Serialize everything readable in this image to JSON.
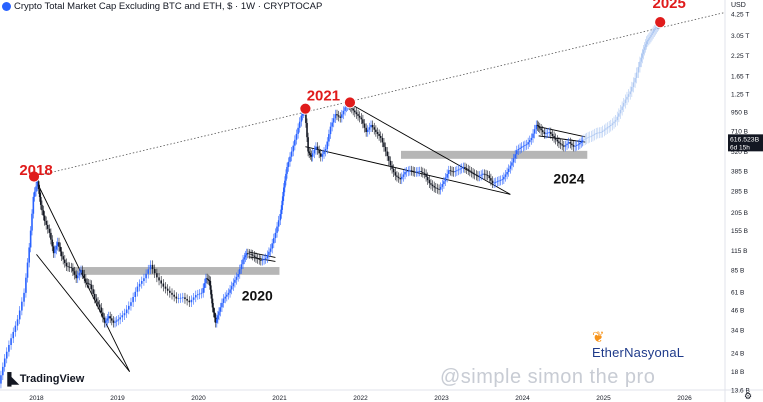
{
  "header": {
    "title": "Crypto Total Market Cap Excluding BTC and ETH, $ · 1W · CRYPTOCAP",
    "currency": "USD"
  },
  "branding": {
    "tradingview": "TradingView",
    "author": "EtherNasyonaL",
    "watermark": "@simple simon the pro"
  },
  "colors": {
    "up": "#26a69a",
    "up_alt": "#2962ff",
    "projection": "#aec8f2",
    "marker": "#e01b1b",
    "zone": "#9e9e9e",
    "line": "#000000"
  },
  "chart_data": {
    "type": "line",
    "title": "Crypto Total Market Cap Excluding BTC and ETH, $ · 1W · CRYPTOCAP",
    "y_scale": "log",
    "ylim": [
      13.6,
      4.8
    ],
    "y_ticks": [
      "4.25 T",
      "3.05 T",
      "2.25 T",
      "1.65 T",
      "1.25 T",
      "950 B",
      "710 B",
      "520 B",
      "385 B",
      "285 B",
      "205 B",
      "155 B",
      "115 B",
      "85 B",
      "61 B",
      "46 B",
      "34 B",
      "24 B",
      "18 B",
      "13.6 B"
    ],
    "y_tick_values": [
      4250,
      3050,
      2250,
      1650,
      1250,
      950,
      710,
      520,
      385,
      285,
      205,
      155,
      115,
      85,
      61,
      46,
      34,
      24,
      18,
      13.6
    ],
    "x_ticks": [
      "2018",
      "2019",
      "2020",
      "2021",
      "2022",
      "2023",
      "2024",
      "2025",
      "2026"
    ],
    "x_tick_values": [
      2018.0,
      2019.0,
      2020.0,
      2021.0,
      2022.0,
      2023.0,
      2024.0,
      2025.0,
      2026.0
    ],
    "xlim": [
      2017.55,
      2026.5
    ],
    "price_label": "616.523B",
    "countdown": "6d 15h",
    "current_value": 616.523,
    "series": [
      {
        "points": [
          [
            2017.55,
            15
          ],
          [
            2017.62,
            22
          ],
          [
            2017.7,
            30
          ],
          [
            2017.78,
            40
          ],
          [
            2017.86,
            60
          ],
          [
            2017.92,
            120
          ],
          [
            2017.97,
            260
          ],
          [
            2018.02,
            330
          ],
          [
            2018.06,
            230
          ],
          [
            2018.11,
            180
          ],
          [
            2018.17,
            150
          ],
          [
            2018.22,
            110
          ],
          [
            2018.27,
            130
          ],
          [
            2018.32,
            105
          ],
          [
            2018.38,
            90
          ],
          [
            2018.44,
            88
          ],
          [
            2018.5,
            75
          ],
          [
            2018.56,
            85
          ],
          [
            2018.62,
            70
          ],
          [
            2018.67,
            68
          ],
          [
            2018.73,
            55
          ],
          [
            2018.79,
            48
          ],
          [
            2018.85,
            38
          ],
          [
            2018.9,
            42
          ],
          [
            2018.96,
            38
          ],
          [
            2019.02,
            40
          ],
          [
            2019.1,
            44
          ],
          [
            2019.18,
            52
          ],
          [
            2019.26,
            66
          ],
          [
            2019.34,
            75
          ],
          [
            2019.42,
            92
          ],
          [
            2019.5,
            76
          ],
          [
            2019.58,
            66
          ],
          [
            2019.66,
            60
          ],
          [
            2019.74,
            55
          ],
          [
            2019.82,
            56
          ],
          [
            2019.9,
            52
          ],
          [
            2019.98,
            58
          ],
          [
            2020.05,
            60
          ],
          [
            2020.1,
            75
          ],
          [
            2020.14,
            72
          ],
          [
            2020.18,
            48
          ],
          [
            2020.22,
            38
          ],
          [
            2020.26,
            45
          ],
          [
            2020.32,
            55
          ],
          [
            2020.38,
            60
          ],
          [
            2020.44,
            70
          ],
          [
            2020.5,
            80
          ],
          [
            2020.56,
            100
          ],
          [
            2020.6,
            110
          ],
          [
            2020.66,
            108
          ],
          [
            2020.72,
            102
          ],
          [
            2020.78,
            98
          ],
          [
            2020.84,
            102
          ],
          [
            2020.9,
            118
          ],
          [
            2020.96,
            150
          ],
          [
            2021.02,
            200
          ],
          [
            2021.06,
            300
          ],
          [
            2021.1,
            410
          ],
          [
            2021.16,
            520
          ],
          [
            2021.22,
            680
          ],
          [
            2021.28,
            900
          ],
          [
            2021.32,
            1000
          ],
          [
            2021.36,
            520
          ],
          [
            2021.4,
            480
          ],
          [
            2021.46,
            560
          ],
          [
            2021.52,
            480
          ],
          [
            2021.58,
            540
          ],
          [
            2021.64,
            760
          ],
          [
            2021.7,
            920
          ],
          [
            2021.76,
            870
          ],
          [
            2021.82,
            1020
          ],
          [
            2021.86,
            1080
          ],
          [
            2021.9,
            1000
          ],
          [
            2021.96,
            920
          ],
          [
            2022.02,
            850
          ],
          [
            2022.08,
            700
          ],
          [
            2022.14,
            780
          ],
          [
            2022.2,
            700
          ],
          [
            2022.26,
            640
          ],
          [
            2022.32,
            520
          ],
          [
            2022.38,
            420
          ],
          [
            2022.44,
            360
          ],
          [
            2022.5,
            340
          ],
          [
            2022.56,
            380
          ],
          [
            2022.62,
            390
          ],
          [
            2022.68,
            380
          ],
          [
            2022.74,
            385
          ],
          [
            2022.8,
            370
          ],
          [
            2022.86,
            320
          ],
          [
            2022.92,
            300
          ],
          [
            2022.98,
            290
          ],
          [
            2023.04,
            330
          ],
          [
            2023.1,
            390
          ],
          [
            2023.16,
            380
          ],
          [
            2023.22,
            395
          ],
          [
            2023.28,
            410
          ],
          [
            2023.34,
            390
          ],
          [
            2023.4,
            370
          ],
          [
            2023.46,
            355
          ],
          [
            2023.52,
            370
          ],
          [
            2023.58,
            360
          ],
          [
            2023.64,
            320
          ],
          [
            2023.7,
            330
          ],
          [
            2023.76,
            340
          ],
          [
            2023.82,
            380
          ],
          [
            2023.88,
            440
          ],
          [
            2023.94,
            530
          ],
          [
            2024.0,
            560
          ],
          [
            2024.06,
            580
          ],
          [
            2024.12,
            640
          ],
          [
            2024.18,
            780
          ],
          [
            2024.22,
            740
          ],
          [
            2024.28,
            680
          ],
          [
            2024.34,
            700
          ],
          [
            2024.4,
            640
          ],
          [
            2024.46,
            590
          ],
          [
            2024.52,
            560
          ],
          [
            2024.58,
            600
          ],
          [
            2024.64,
            560
          ],
          [
            2024.7,
            580
          ],
          [
            2024.75,
            616.5
          ]
        ]
      },
      {
        "points": [
          [
            2024.75,
            616.5
          ],
          [
            2024.8,
            640
          ],
          [
            2024.86,
            660
          ],
          [
            2024.92,
            690
          ],
          [
            2024.98,
            700
          ],
          [
            2025.04,
            740
          ],
          [
            2025.1,
            780
          ],
          [
            2025.16,
            840
          ],
          [
            2025.22,
            980
          ],
          [
            2025.28,
            1150
          ],
          [
            2025.34,
            1300
          ],
          [
            2025.4,
            1600
          ],
          [
            2025.46,
            2050
          ],
          [
            2025.5,
            2450
          ],
          [
            2025.54,
            2800
          ],
          [
            2025.58,
            3000
          ],
          [
            2025.62,
            3250
          ],
          [
            2025.66,
            3500
          ],
          [
            2025.7,
            3750
          ]
        ]
      }
    ],
    "annotations": [
      {
        "text": "2018",
        "x": 2017.97,
        "y": 285
      },
      {
        "text": "2021",
        "x": 2021.32,
        "y": 900
      },
      {
        "text": "2025",
        "x": 2025.7,
        "y": 3750
      },
      {
        "text": "2020",
        "x": 2020.8,
        "y": 62
      },
      {
        "text": "2024",
        "x": 2024.45,
        "y": 395
      }
    ],
    "markers": [
      {
        "x": 2017.97,
        "y": 355
      },
      {
        "x": 2021.32,
        "y": 1000
      },
      {
        "x": 2021.87,
        "y": 1100
      },
      {
        "x": 2025.7,
        "y": 3750
      }
    ],
    "trend_line": {
      "from": [
        2017.97,
        355
      ],
      "to": [
        2026.5,
        4350
      ]
    },
    "zones": [
      {
        "x": [
          2018.45,
          2021.0
        ],
        "y": [
          89,
          79
        ]
      },
      {
        "x": [
          2022.5,
          2024.8
        ],
        "y": [
          525,
          465
        ]
      }
    ],
    "wedges": [
      {
        "top": [
          [
            2018.0,
            330
          ],
          [
            2019.15,
            18
          ]
        ],
        "bottom": [
          [
            2018.0,
            108
          ],
          [
            2019.15,
            18
          ]
        ]
      },
      {
        "top": [
          [
            2021.87,
            1080
          ],
          [
            2023.85,
            270
          ]
        ],
        "bottom": [
          [
            2021.32,
            560
          ],
          [
            2023.85,
            270
          ]
        ]
      },
      {
        "top": [
          [
            2020.62,
            112
          ],
          [
            2020.95,
            103
          ]
        ],
        "bottom": [
          [
            2020.62,
            104
          ],
          [
            2020.95,
            97
          ]
        ]
      },
      {
        "top": [
          [
            2024.2,
            760
          ],
          [
            2024.78,
            650
          ]
        ],
        "bottom": [
          [
            2024.2,
            660
          ],
          [
            2024.78,
            600
          ]
        ]
      }
    ]
  }
}
